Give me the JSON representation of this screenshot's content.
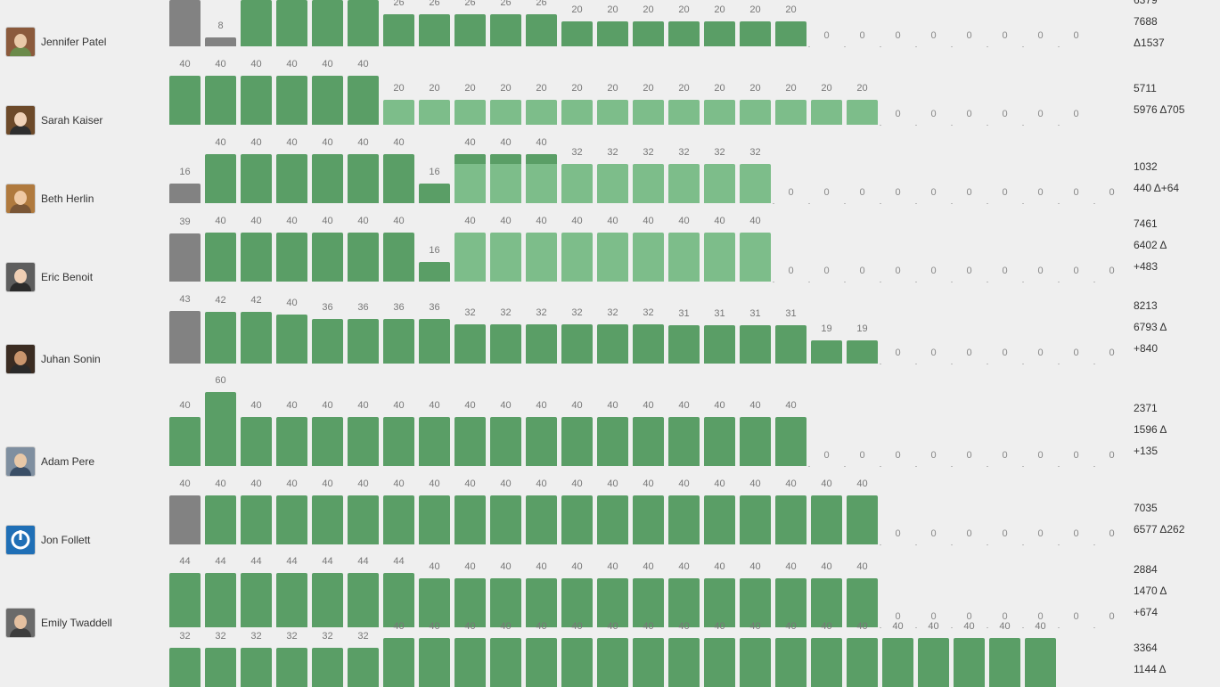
{
  "colors": {
    "green": "#5a9e66",
    "light_green": "#7dbd8a",
    "gray": "#828282",
    "background": "#efefef"
  },
  "rows": [
    {
      "name": "Jennifer Patel",
      "avatar": "avatar-jennifer-patel",
      "bars": [
        {
          "v": null,
          "c": "gray"
        },
        {
          "v": 8,
          "c": "gray"
        },
        {
          "v": null,
          "c": "green"
        },
        {
          "v": null,
          "c": "green"
        },
        {
          "v": null,
          "c": "green"
        },
        {
          "v": null,
          "c": "green"
        },
        {
          "v": 26,
          "c": "green"
        },
        {
          "v": 26,
          "c": "green"
        },
        {
          "v": 26,
          "c": "green"
        },
        {
          "v": 26,
          "c": "green"
        },
        {
          "v": 26,
          "c": "green"
        },
        {
          "v": 20,
          "c": "green"
        },
        {
          "v": 20,
          "c": "green"
        },
        {
          "v": 20,
          "c": "green"
        },
        {
          "v": 20,
          "c": "green"
        },
        {
          "v": 20,
          "c": "green"
        },
        {
          "v": 20,
          "c": "green"
        },
        {
          "v": 20,
          "c": "green"
        },
        {
          "v": 0
        },
        {
          "v": 0
        },
        {
          "v": 0
        },
        {
          "v": 0
        },
        {
          "v": 0
        },
        {
          "v": 0
        },
        {
          "v": 0
        },
        {
          "v": 0
        }
      ],
      "stats": [
        "6379",
        "7688",
        "Δ1537"
      ]
    },
    {
      "name": "Sarah Kaiser",
      "avatar": "avatar-sarah-kaiser",
      "bars": [
        {
          "v": 40,
          "c": "green"
        },
        {
          "v": 40,
          "c": "green"
        },
        {
          "v": 40,
          "c": "green"
        },
        {
          "v": 40,
          "c": "green"
        },
        {
          "v": 40,
          "c": "green"
        },
        {
          "v": 40,
          "c": "green"
        },
        {
          "v": 20,
          "c": "light"
        },
        {
          "v": 20,
          "c": "light"
        },
        {
          "v": 20,
          "c": "light"
        },
        {
          "v": 20,
          "c": "light"
        },
        {
          "v": 20,
          "c": "light"
        },
        {
          "v": 20,
          "c": "light"
        },
        {
          "v": 20,
          "c": "light"
        },
        {
          "v": 20,
          "c": "light"
        },
        {
          "v": 20,
          "c": "light"
        },
        {
          "v": 20,
          "c": "light"
        },
        {
          "v": 20,
          "c": "light"
        },
        {
          "v": 20,
          "c": "light"
        },
        {
          "v": 20,
          "c": "light"
        },
        {
          "v": 20,
          "c": "light"
        },
        {
          "v": 0
        },
        {
          "v": 0
        },
        {
          "v": 0
        },
        {
          "v": 0
        },
        {
          "v": 0
        },
        {
          "v": 0
        }
      ],
      "stats": [
        "5711",
        "5976 Δ705"
      ]
    },
    {
      "name": "Beth Herlin",
      "avatar": "avatar-beth-herlin",
      "bars": [
        {
          "v": 16,
          "c": "gray"
        },
        {
          "v": 40,
          "c": "green"
        },
        {
          "v": 40,
          "c": "green"
        },
        {
          "v": 40,
          "c": "green"
        },
        {
          "v": 40,
          "c": "green"
        },
        {
          "v": 40,
          "c": "green"
        },
        {
          "v": 40,
          "c": "green"
        },
        {
          "v": 16,
          "c": "green"
        },
        {
          "v": 40,
          "c": "light",
          "split": 32
        },
        {
          "v": 40,
          "c": "light",
          "split": 32
        },
        {
          "v": 40,
          "c": "light",
          "split": 32
        },
        {
          "v": 32,
          "c": "light"
        },
        {
          "v": 32,
          "c": "light"
        },
        {
          "v": 32,
          "c": "light"
        },
        {
          "v": 32,
          "c": "light"
        },
        {
          "v": 32,
          "c": "light"
        },
        {
          "v": 32,
          "c": "light"
        },
        {
          "v": 0
        },
        {
          "v": 0
        },
        {
          "v": 0
        },
        {
          "v": 0
        },
        {
          "v": 0
        },
        {
          "v": 0
        },
        {
          "v": 0
        },
        {
          "v": 0
        },
        {
          "v": 0
        },
        {
          "v": 0
        }
      ],
      "stats": [
        "1032",
        "440 Δ+64"
      ]
    },
    {
      "name": "Eric Benoit",
      "avatar": "avatar-eric-benoit",
      "bars": [
        {
          "v": 39,
          "c": "gray"
        },
        {
          "v": 40,
          "c": "green"
        },
        {
          "v": 40,
          "c": "green"
        },
        {
          "v": 40,
          "c": "green"
        },
        {
          "v": 40,
          "c": "green"
        },
        {
          "v": 40,
          "c": "green"
        },
        {
          "v": 40,
          "c": "green"
        },
        {
          "v": 16,
          "c": "green"
        },
        {
          "v": 40,
          "c": "light"
        },
        {
          "v": 40,
          "c": "light"
        },
        {
          "v": 40,
          "c": "light"
        },
        {
          "v": 40,
          "c": "light"
        },
        {
          "v": 40,
          "c": "light"
        },
        {
          "v": 40,
          "c": "light"
        },
        {
          "v": 40,
          "c": "light"
        },
        {
          "v": 40,
          "c": "light"
        },
        {
          "v": 40,
          "c": "light"
        },
        {
          "v": 0
        },
        {
          "v": 0
        },
        {
          "v": 0
        },
        {
          "v": 0
        },
        {
          "v": 0
        },
        {
          "v": 0
        },
        {
          "v": 0
        },
        {
          "v": 0
        },
        {
          "v": 0
        },
        {
          "v": 0
        }
      ],
      "stats": [
        "7461",
        "6402 Δ",
        "+483"
      ]
    },
    {
      "name": "Juhan Sonin",
      "avatar": "avatar-juhan-sonin",
      "bars": [
        {
          "v": 43,
          "c": "gray"
        },
        {
          "v": 42,
          "c": "green"
        },
        {
          "v": 42,
          "c": "green"
        },
        {
          "v": 40,
          "c": "green"
        },
        {
          "v": 36,
          "c": "green"
        },
        {
          "v": 36,
          "c": "green"
        },
        {
          "v": 36,
          "c": "green"
        },
        {
          "v": 36,
          "c": "green"
        },
        {
          "v": 32,
          "c": "green"
        },
        {
          "v": 32,
          "c": "green"
        },
        {
          "v": 32,
          "c": "green"
        },
        {
          "v": 32,
          "c": "green"
        },
        {
          "v": 32,
          "c": "green"
        },
        {
          "v": 32,
          "c": "green"
        },
        {
          "v": 31,
          "c": "green"
        },
        {
          "v": 31,
          "c": "green"
        },
        {
          "v": 31,
          "c": "green"
        },
        {
          "v": 31,
          "c": "green"
        },
        {
          "v": 19,
          "c": "green"
        },
        {
          "v": 19,
          "c": "green"
        },
        {
          "v": 0
        },
        {
          "v": 0
        },
        {
          "v": 0
        },
        {
          "v": 0
        },
        {
          "v": 0
        },
        {
          "v": 0
        },
        {
          "v": 0
        }
      ],
      "stats": [
        "8213",
        "6793 Δ",
        "+840"
      ]
    },
    {
      "name": "Adam Pere",
      "avatar": "avatar-adam-pere",
      "bars": [
        {
          "v": 40,
          "c": "green"
        },
        {
          "v": 60,
          "c": "green"
        },
        {
          "v": 40,
          "c": "green"
        },
        {
          "v": 40,
          "c": "green"
        },
        {
          "v": 40,
          "c": "green"
        },
        {
          "v": 40,
          "c": "green"
        },
        {
          "v": 40,
          "c": "green"
        },
        {
          "v": 40,
          "c": "green"
        },
        {
          "v": 40,
          "c": "green"
        },
        {
          "v": 40,
          "c": "green"
        },
        {
          "v": 40,
          "c": "green"
        },
        {
          "v": 40,
          "c": "green"
        },
        {
          "v": 40,
          "c": "green"
        },
        {
          "v": 40,
          "c": "green"
        },
        {
          "v": 40,
          "c": "green"
        },
        {
          "v": 40,
          "c": "green"
        },
        {
          "v": 40,
          "c": "green"
        },
        {
          "v": 40,
          "c": "green"
        },
        {
          "v": 0
        },
        {
          "v": 0
        },
        {
          "v": 0
        },
        {
          "v": 0
        },
        {
          "v": 0
        },
        {
          "v": 0
        },
        {
          "v": 0
        },
        {
          "v": 0
        },
        {
          "v": 0
        }
      ],
      "stats": [
        "2371",
        "1596 Δ",
        "+135"
      ]
    },
    {
      "name": "Jon Follett",
      "avatar": "avatar-jon-follett",
      "bars": [
        {
          "v": 40,
          "c": "gray"
        },
        {
          "v": 40,
          "c": "green"
        },
        {
          "v": 40,
          "c": "green"
        },
        {
          "v": 40,
          "c": "green"
        },
        {
          "v": 40,
          "c": "green"
        },
        {
          "v": 40,
          "c": "green"
        },
        {
          "v": 40,
          "c": "green"
        },
        {
          "v": 40,
          "c": "green"
        },
        {
          "v": 40,
          "c": "green"
        },
        {
          "v": 40,
          "c": "green"
        },
        {
          "v": 40,
          "c": "green"
        },
        {
          "v": 40,
          "c": "green"
        },
        {
          "v": 40,
          "c": "green"
        },
        {
          "v": 40,
          "c": "green"
        },
        {
          "v": 40,
          "c": "green"
        },
        {
          "v": 40,
          "c": "green"
        },
        {
          "v": 40,
          "c": "green"
        },
        {
          "v": 40,
          "c": "green"
        },
        {
          "v": 40,
          "c": "green"
        },
        {
          "v": 40,
          "c": "green"
        },
        {
          "v": 0
        },
        {
          "v": 0
        },
        {
          "v": 0
        },
        {
          "v": 0
        },
        {
          "v": 0
        },
        {
          "v": 0
        },
        {
          "v": 0
        }
      ],
      "stats": [
        "7035",
        "6577 Δ262"
      ]
    },
    {
      "name": "Emily Twaddell",
      "avatar": "avatar-emily-twaddell",
      "bars": [
        {
          "v": 44,
          "c": "green"
        },
        {
          "v": 44,
          "c": "green"
        },
        {
          "v": 44,
          "c": "green"
        },
        {
          "v": 44,
          "c": "green"
        },
        {
          "v": 44,
          "c": "green"
        },
        {
          "v": 44,
          "c": "green"
        },
        {
          "v": 44,
          "c": "green"
        },
        {
          "v": 40,
          "c": "green"
        },
        {
          "v": 40,
          "c": "green"
        },
        {
          "v": 40,
          "c": "green"
        },
        {
          "v": 40,
          "c": "green"
        },
        {
          "v": 40,
          "c": "green"
        },
        {
          "v": 40,
          "c": "green"
        },
        {
          "v": 40,
          "c": "green"
        },
        {
          "v": 40,
          "c": "green"
        },
        {
          "v": 40,
          "c": "green"
        },
        {
          "v": 40,
          "c": "green"
        },
        {
          "v": 40,
          "c": "green"
        },
        {
          "v": 40,
          "c": "green"
        },
        {
          "v": 40,
          "c": "green"
        },
        {
          "v": 0
        },
        {
          "v": 0
        },
        {
          "v": 0
        },
        {
          "v": 0
        },
        {
          "v": 0
        },
        {
          "v": 0
        },
        {
          "v": 0
        }
      ],
      "stats": [
        "2884",
        "1470 Δ",
        "+674"
      ]
    },
    {
      "name": "",
      "avatar": "",
      "bars": [
        {
          "v": 32,
          "c": "green"
        },
        {
          "v": 32,
          "c": "green"
        },
        {
          "v": 32,
          "c": "green"
        },
        {
          "v": 32,
          "c": "green"
        },
        {
          "v": 32,
          "c": "green"
        },
        {
          "v": 32,
          "c": "green"
        },
        {
          "v": 40,
          "c": "green"
        },
        {
          "v": 40,
          "c": "green"
        },
        {
          "v": 40,
          "c": "green"
        },
        {
          "v": 40,
          "c": "green"
        },
        {
          "v": 40,
          "c": "green"
        },
        {
          "v": 40,
          "c": "green"
        },
        {
          "v": 40,
          "c": "green"
        },
        {
          "v": 40,
          "c": "green"
        },
        {
          "v": 40,
          "c": "green"
        },
        {
          "v": 40,
          "c": "green"
        },
        {
          "v": 40,
          "c": "green"
        },
        {
          "v": 40,
          "c": "green"
        },
        {
          "v": 40,
          "c": "green"
        },
        {
          "v": 40,
          "c": "green"
        },
        {
          "v": 40,
          "c": "green"
        },
        {
          "v": 40,
          "c": "green"
        },
        {
          "v": 40,
          "c": "green"
        },
        {
          "v": 40,
          "c": "green"
        },
        {
          "v": 40,
          "c": "green"
        }
      ],
      "stats": [
        "3364",
        "1144 Δ"
      ]
    }
  ]
}
